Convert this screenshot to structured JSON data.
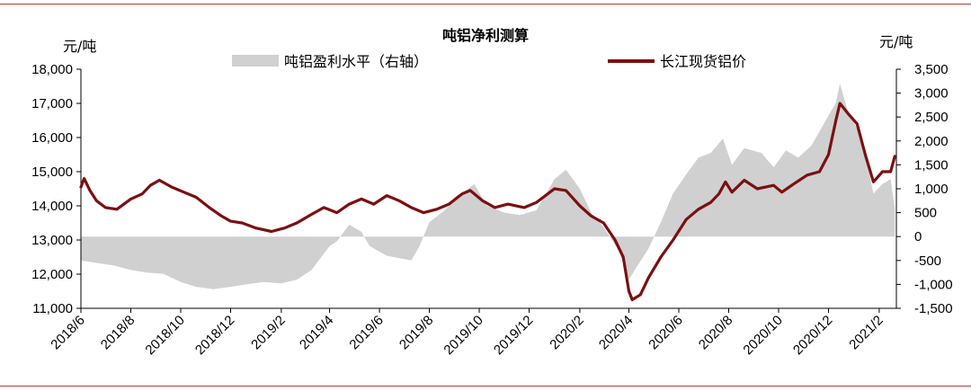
{
  "chart_data": {
    "type": "line",
    "title": "吨铝净利测算",
    "ylabel_left": "元/吨",
    "ylabel_right": "元/吨",
    "ylim_left": [
      11000,
      18000
    ],
    "ylim_right": [
      -1500,
      3500
    ],
    "yticks_left": [
      11000,
      12000,
      13000,
      14000,
      15000,
      16000,
      17000,
      18000
    ],
    "yticks_right": [
      -1500,
      -1000,
      -500,
      0,
      500,
      1000,
      1500,
      2000,
      2500,
      3000,
      3500
    ],
    "ytick_labels_left": [
      "11,000",
      "12,000",
      "13,000",
      "14,000",
      "15,000",
      "16,000",
      "17,000",
      "18,000"
    ],
    "ytick_labels_right": [
      "-1,500",
      "-1,000",
      "-500",
      "0",
      "500",
      "1,000",
      "1,500",
      "2,000",
      "2,500",
      "3,000",
      "3,500"
    ],
    "xticks": [
      "2018/6",
      "2018/8",
      "2018/10",
      "2018/12",
      "2019/2",
      "2019/4",
      "2019/6",
      "2019/8",
      "2019/10",
      "2019/12",
      "2020/2",
      "2020/4",
      "2020/6",
      "2020/8",
      "2020/10",
      "2020/12",
      "2021/2"
    ],
    "grid": false,
    "legend_position": "top",
    "series": [
      {
        "name": "吨铝盈利水平（右轴）",
        "kind": "area",
        "axis": "right",
        "color": "#d0d0d0",
        "points": [
          [
            "2018-06-01",
            -500
          ],
          [
            "2018-06-20",
            -550
          ],
          [
            "2018-07-10",
            -600
          ],
          [
            "2018-08-01",
            -700
          ],
          [
            "2018-08-20",
            -750
          ],
          [
            "2018-09-10",
            -780
          ],
          [
            "2018-10-01",
            -950
          ],
          [
            "2018-10-20",
            -1050
          ],
          [
            "2018-11-10",
            -1100
          ],
          [
            "2018-12-01",
            -1050
          ],
          [
            "2018-12-20",
            -1000
          ],
          [
            "2019-01-10",
            -950
          ],
          [
            "2019-02-01",
            -980
          ],
          [
            "2019-02-20",
            -900
          ],
          [
            "2019-03-10",
            -700
          ],
          [
            "2019-04-01",
            -200
          ],
          [
            "2019-04-10",
            -100
          ],
          [
            "2019-04-25",
            250
          ],
          [
            "2019-05-10",
            100
          ],
          [
            "2019-05-20",
            -200
          ],
          [
            "2019-06-10",
            -400
          ],
          [
            "2019-06-25",
            -450
          ],
          [
            "2019-07-10",
            -500
          ],
          [
            "2019-07-20",
            -200
          ],
          [
            "2019-08-01",
            300
          ],
          [
            "2019-08-20",
            550
          ],
          [
            "2019-09-10",
            900
          ],
          [
            "2019-09-25",
            1100
          ],
          [
            "2019-10-10",
            650
          ],
          [
            "2019-11-01",
            500
          ],
          [
            "2019-11-20",
            450
          ],
          [
            "2019-12-10",
            550
          ],
          [
            "2020-01-01",
            1200
          ],
          [
            "2020-01-15",
            1400
          ],
          [
            "2020-02-01",
            1000
          ],
          [
            "2020-02-15",
            500
          ],
          [
            "2020-03-01",
            200
          ],
          [
            "2020-03-20",
            -300
          ],
          [
            "2020-04-01",
            -900
          ],
          [
            "2020-04-10",
            -650
          ],
          [
            "2020-04-25",
            -250
          ],
          [
            "2020-05-10",
            300
          ],
          [
            "2020-05-25",
            900
          ],
          [
            "2020-06-10",
            1300
          ],
          [
            "2020-06-25",
            1650
          ],
          [
            "2020-07-10",
            1750
          ],
          [
            "2020-07-25",
            2050
          ],
          [
            "2020-08-05",
            1500
          ],
          [
            "2020-08-20",
            1850
          ],
          [
            "2020-09-10",
            1750
          ],
          [
            "2020-09-25",
            1450
          ],
          [
            "2020-10-10",
            1800
          ],
          [
            "2020-10-25",
            1650
          ],
          [
            "2020-11-10",
            1900
          ],
          [
            "2020-11-25",
            2350
          ],
          [
            "2020-12-10",
            2800
          ],
          [
            "2020-12-15",
            3200
          ],
          [
            "2020-12-25",
            2600
          ],
          [
            "2021-01-10",
            2100
          ],
          [
            "2021-01-20",
            1300
          ],
          [
            "2021-01-25",
            900
          ],
          [
            "2021-02-05",
            1100
          ],
          [
            "2021-02-15",
            1200
          ],
          [
            "2021-02-20",
            600
          ]
        ]
      },
      {
        "name": "长江现货铝价",
        "kind": "line",
        "axis": "left",
        "color": "#7b1010",
        "points": [
          [
            "2018-06-01",
            14550
          ],
          [
            "2018-06-05",
            14800
          ],
          [
            "2018-06-12",
            14450
          ],
          [
            "2018-06-20",
            14150
          ],
          [
            "2018-07-01",
            13950
          ],
          [
            "2018-07-15",
            13900
          ],
          [
            "2018-08-01",
            14200
          ],
          [
            "2018-08-15",
            14350
          ],
          [
            "2018-08-25",
            14600
          ],
          [
            "2018-09-05",
            14750
          ],
          [
            "2018-09-20",
            14550
          ],
          [
            "2018-10-05",
            14400
          ],
          [
            "2018-10-20",
            14250
          ],
          [
            "2018-11-05",
            13950
          ],
          [
            "2018-11-20",
            13700
          ],
          [
            "2018-12-01",
            13550
          ],
          [
            "2018-12-15",
            13500
          ],
          [
            "2019-01-01",
            13350
          ],
          [
            "2019-01-20",
            13250
          ],
          [
            "2019-02-05",
            13350
          ],
          [
            "2019-02-20",
            13500
          ],
          [
            "2019-03-10",
            13750
          ],
          [
            "2019-03-25",
            13950
          ],
          [
            "2019-04-10",
            13800
          ],
          [
            "2019-04-25",
            14050
          ],
          [
            "2019-05-10",
            14200
          ],
          [
            "2019-05-25",
            14050
          ],
          [
            "2019-06-10",
            14300
          ],
          [
            "2019-06-25",
            14150
          ],
          [
            "2019-07-10",
            13950
          ],
          [
            "2019-07-25",
            13800
          ],
          [
            "2019-08-10",
            13900
          ],
          [
            "2019-08-25",
            14050
          ],
          [
            "2019-09-10",
            14350
          ],
          [
            "2019-09-20",
            14450
          ],
          [
            "2019-10-05",
            14150
          ],
          [
            "2019-10-20",
            13950
          ],
          [
            "2019-11-05",
            14050
          ],
          [
            "2019-11-25",
            13950
          ],
          [
            "2019-12-10",
            14100
          ],
          [
            "2020-01-01",
            14500
          ],
          [
            "2020-01-15",
            14450
          ],
          [
            "2020-02-01",
            14000
          ],
          [
            "2020-02-15",
            13700
          ],
          [
            "2020-03-01",
            13500
          ],
          [
            "2020-03-15",
            13000
          ],
          [
            "2020-03-25",
            12500
          ],
          [
            "2020-04-01",
            11500
          ],
          [
            "2020-04-05",
            11250
          ],
          [
            "2020-04-15",
            11400
          ],
          [
            "2020-04-25",
            11900
          ],
          [
            "2020-05-10",
            12500
          ],
          [
            "2020-05-25",
            13000
          ],
          [
            "2020-06-10",
            13600
          ],
          [
            "2020-06-25",
            13900
          ],
          [
            "2020-07-10",
            14100
          ],
          [
            "2020-07-20",
            14350
          ],
          [
            "2020-07-28",
            14700
          ],
          [
            "2020-08-05",
            14400
          ],
          [
            "2020-08-20",
            14750
          ],
          [
            "2020-09-05",
            14500
          ],
          [
            "2020-09-25",
            14600
          ],
          [
            "2020-10-05",
            14400
          ],
          [
            "2020-10-20",
            14650
          ],
          [
            "2020-11-05",
            14900
          ],
          [
            "2020-11-20",
            15000
          ],
          [
            "2020-12-01",
            15500
          ],
          [
            "2020-12-10",
            16500
          ],
          [
            "2020-12-15",
            17000
          ],
          [
            "2020-12-25",
            16700
          ],
          [
            "2021-01-05",
            16400
          ],
          [
            "2021-01-15",
            15500
          ],
          [
            "2021-01-25",
            14700
          ],
          [
            "2021-02-05",
            15000
          ],
          [
            "2021-02-15",
            15000
          ],
          [
            "2021-02-20",
            15450
          ]
        ]
      }
    ]
  }
}
